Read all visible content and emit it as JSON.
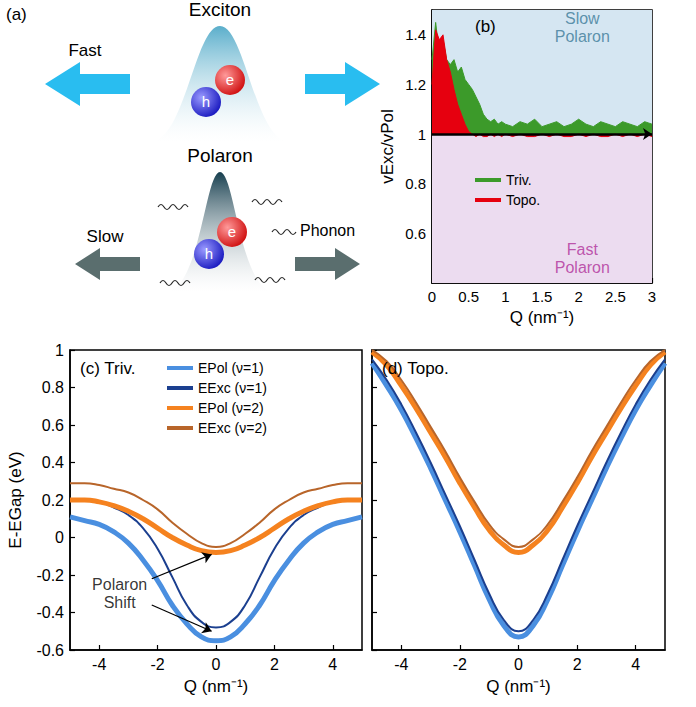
{
  "diagram": {
    "panel": "(a)",
    "exciton": {
      "title": "Exciton",
      "motion": "Fast",
      "particles": [
        "e",
        "h"
      ]
    },
    "polaron": {
      "title": "Polaron",
      "motion": "Slow",
      "particles": [
        "e",
        "h"
      ],
      "label": "Phonon"
    }
  },
  "chart_data": [
    {
      "type": "area",
      "title": "(b)",
      "xlabel": "Q (nm⁻¹)",
      "ylabel": "vExc/vPol",
      "x": [
        0,
        0.05,
        0.1,
        0.15,
        0.2,
        0.25,
        0.3,
        0.35,
        0.4,
        0.45,
        0.5,
        0.55,
        0.6,
        0.65,
        0.7,
        0.75,
        0.8,
        0.85,
        0.9,
        0.95,
        1,
        1.1,
        1.2,
        1.3,
        1.4,
        1.5,
        1.6,
        1.7,
        1.8,
        1.9,
        2,
        2.1,
        2.2,
        2.3,
        2.4,
        2.5,
        2.6,
        2.7,
        2.8,
        2.9,
        3
      ],
      "series": [
        {
          "name": "Triv.",
          "color": "#3c9a2a",
          "values": [
            1.3,
            1.45,
            1.32,
            1.38,
            1.3,
            1.28,
            1.3,
            1.25,
            1.27,
            1.22,
            1.2,
            1.18,
            1.15,
            1.12,
            1.08,
            1.06,
            1.05,
            1.06,
            1.04,
            1.05,
            1.04,
            1.03,
            1.05,
            1.04,
            1.06,
            1.03,
            1.04,
            1.05,
            1.03,
            1.04,
            1.06,
            1.04,
            1.03,
            1.05,
            1.04,
            1.03,
            1.05,
            1.04,
            1.03,
            1.05,
            1.04
          ]
        },
        {
          "name": "Topo.",
          "color": "#e6000f",
          "values": [
            1.2,
            1.42,
            1.38,
            1.4,
            1.3,
            1.25,
            1.18,
            1.12,
            1.08,
            1.04,
            1.01,
            1.0,
            0.99,
            1.0,
            0.99,
            0.99,
            1.0,
            0.99,
            1.0,
            0.99,
            1.0,
            0.99,
            1.0,
            0.99,
            0.99,
            1.0,
            0.99,
            1.0,
            0.99,
            0.99,
            1.0,
            0.99,
            1.0,
            0.99,
            0.99,
            1.0,
            0.99,
            1.0,
            0.99,
            1.0,
            0.99
          ]
        }
      ],
      "xlim": [
        0,
        3
      ],
      "xticks": [
        0,
        0.5,
        1,
        1.5,
        2,
        2.5,
        3
      ],
      "ylim": [
        0.4,
        1.5
      ],
      "yticks": [
        0.6,
        0.8,
        1,
        1.2,
        1.4
      ],
      "reference_line": 1,
      "regions": [
        {
          "text": "Slow Polaron",
          "from": 1,
          "to": 1.5,
          "color": "#d5e6f2",
          "text_color": "#3b7a98",
          "x": 2.05,
          "y": 1.43
        },
        {
          "text": "Fast Polaron",
          "from": 0.4,
          "to": 1,
          "color": "#ecdcf0",
          "text_color": "#b0309a",
          "x": 2.05,
          "y": 0.5
        }
      ],
      "legend": "center-left",
      "grid": false
    },
    {
      "type": "line",
      "title": "(c) Triv.",
      "xlabel": "Q (nm⁻¹)",
      "ylabel": "E-EGap (eV)",
      "x": [
        -5,
        -4.5,
        -4,
        -3.5,
        -3,
        -2.5,
        -2,
        -1.5,
        -1,
        -0.5,
        0,
        0.5,
        1,
        1.5,
        2,
        2.5,
        3,
        3.5,
        4,
        4.5,
        5
      ],
      "series": [
        {
          "name": "EPol (ν=1)",
          "color": "#4a8fe0",
          "line_style": "thick",
          "values": [
            0.11,
            0.09,
            0.07,
            0.03,
            -0.03,
            -0.12,
            -0.23,
            -0.36,
            -0.46,
            -0.53,
            -0.55,
            -0.53,
            -0.46,
            -0.36,
            -0.23,
            -0.12,
            -0.03,
            0.03,
            0.07,
            0.09,
            0.11
          ]
        },
        {
          "name": "EExc (ν=1)",
          "color": "#1b3f8f",
          "line_style": "thin",
          "values": [
            0.2,
            0.2,
            0.19,
            0.16,
            0.12,
            0.05,
            -0.06,
            -0.21,
            -0.36,
            -0.45,
            -0.48,
            -0.45,
            -0.36,
            -0.21,
            -0.06,
            0.05,
            0.12,
            0.16,
            0.19,
            0.2,
            0.2
          ]
        },
        {
          "name": "EPol (ν=2)",
          "color": "#f5821f",
          "line_style": "thick",
          "values": [
            0.2,
            0.2,
            0.19,
            0.17,
            0.14,
            0.1,
            0.05,
            0.0,
            -0.04,
            -0.07,
            -0.08,
            -0.07,
            -0.04,
            0.0,
            0.05,
            0.1,
            0.14,
            0.17,
            0.19,
            0.2,
            0.2
          ]
        },
        {
          "name": "EExc (ν=2)",
          "color": "#b8652a",
          "line_style": "thin",
          "values": [
            0.29,
            0.29,
            0.28,
            0.26,
            0.24,
            0.2,
            0.15,
            0.08,
            0.02,
            -0.03,
            -0.05,
            -0.03,
            0.02,
            0.08,
            0.15,
            0.2,
            0.24,
            0.26,
            0.28,
            0.29,
            0.29
          ]
        }
      ],
      "xlim": [
        -5,
        5
      ],
      "xticks": [
        -4,
        -2,
        0,
        2,
        4
      ],
      "ylim": [
        -0.6,
        1
      ],
      "yticks": [
        -0.6,
        -0.4,
        -0.2,
        0,
        0.2,
        0.4,
        0.6,
        0.8,
        1
      ],
      "annotations": [
        {
          "text": "Polaron Shift",
          "x": -3.3,
          "y": -0.3,
          "arrows": [
            {
              "from": [
                -2.2,
                -0.22
              ],
              "to": [
                -0.15,
                -0.09
              ]
            },
            {
              "from": [
                -2.2,
                -0.36
              ],
              "to": [
                -0.15,
                -0.5
              ]
            }
          ]
        }
      ],
      "legend": "upper-center",
      "grid": false
    },
    {
      "type": "line",
      "title": "(d) Topo.",
      "xlabel": "Q (nm⁻¹)",
      "x": [
        -5,
        -4.5,
        -4,
        -3.5,
        -3,
        -2.5,
        -2,
        -1.5,
        -1,
        -0.5,
        0,
        0.5,
        1,
        1.5,
        2,
        2.5,
        3,
        3.5,
        4,
        4.5,
        5
      ],
      "series": [
        {
          "name": "EPol (ν=1)",
          "color": "#4a8fe0",
          "line_style": "thick",
          "values": [
            0.93,
            0.81,
            0.68,
            0.53,
            0.37,
            0.2,
            0.03,
            -0.15,
            -0.33,
            -0.47,
            -0.53,
            -0.47,
            -0.33,
            -0.15,
            0.03,
            0.2,
            0.37,
            0.53,
            0.68,
            0.81,
            0.93
          ]
        },
        {
          "name": "EExc (ν=1)",
          "color": "#1b3f8f",
          "line_style": "thin",
          "values": [
            0.95,
            0.84,
            0.71,
            0.56,
            0.4,
            0.23,
            0.06,
            -0.12,
            -0.3,
            -0.44,
            -0.5,
            -0.44,
            -0.3,
            -0.12,
            0.06,
            0.23,
            0.4,
            0.56,
            0.71,
            0.84,
            0.95
          ]
        },
        {
          "name": "EPol (ν=2)",
          "color": "#f5821f",
          "line_style": "thick",
          "values": [
            0.99,
            0.92,
            0.81,
            0.69,
            0.56,
            0.43,
            0.29,
            0.16,
            0.04,
            -0.04,
            -0.08,
            -0.04,
            0.04,
            0.16,
            0.29,
            0.43,
            0.56,
            0.69,
            0.81,
            0.92,
            0.99
          ]
        },
        {
          "name": "EExc (ν=2)",
          "color": "#b8652a",
          "line_style": "thin",
          "values": [
            1.0,
            0.94,
            0.84,
            0.72,
            0.59,
            0.46,
            0.32,
            0.19,
            0.07,
            -0.01,
            -0.05,
            -0.01,
            0.07,
            0.19,
            0.32,
            0.46,
            0.59,
            0.72,
            0.84,
            0.94,
            1.0
          ]
        }
      ],
      "xlim": [
        -5,
        5
      ],
      "xticks": [
        -4,
        -2,
        0,
        2,
        4
      ],
      "ylim": [
        -0.6,
        1
      ],
      "yticks": [
        -0.6,
        -0.4,
        -0.2,
        0,
        0.2,
        0.4,
        0.6,
        0.8,
        1
      ],
      "tick_labels": "x",
      "grid": false
    }
  ]
}
